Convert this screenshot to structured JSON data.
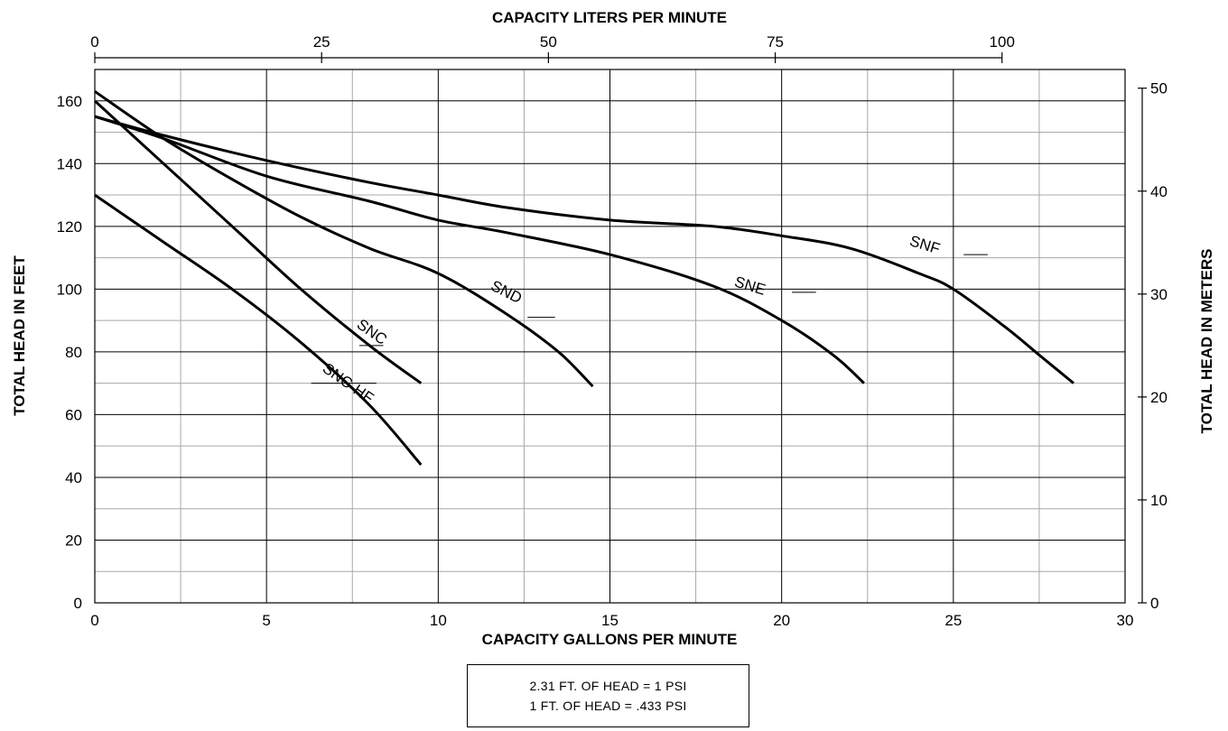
{
  "chart_data": {
    "type": "line",
    "title": "",
    "top_axis": {
      "label": "CAPACITY LITERS PER MINUTE",
      "ticks": [
        0,
        25,
        50,
        75,
        100
      ],
      "tick_labels": [
        "0",
        "25",
        "50",
        "75",
        "100"
      ]
    },
    "xlabel": "CAPACITY GALLONS PER MINUTE",
    "xlim": [
      0,
      30
    ],
    "xticks": [
      0,
      5,
      10,
      15,
      20,
      25,
      30
    ],
    "xtick_labels": [
      "0",
      "5",
      "10",
      "15",
      "20",
      "25",
      "30"
    ],
    "ylabel": "TOTAL HEAD IN FEET",
    "ylim": [
      0,
      170
    ],
    "yticks": [
      0,
      20,
      40,
      60,
      80,
      100,
      120,
      140,
      160
    ],
    "ytick_labels": [
      "0",
      "20",
      "40",
      "60",
      "80",
      "100",
      "120",
      "140",
      "160"
    ],
    "right_axis": {
      "label": "TOTAL HEAD IN METERS",
      "ticks": [
        0,
        10,
        20,
        30,
        40,
        50
      ],
      "tick_labels": [
        "0",
        "10",
        "20",
        "30",
        "40",
        "50"
      ]
    },
    "grid": true,
    "series": [
      {
        "name": "SNC-HF",
        "x": [
          0,
          2,
          4,
          6,
          8,
          9.5
        ],
        "y": [
          130,
          115,
          100,
          83,
          63,
          44
        ]
      },
      {
        "name": "SNC",
        "x": [
          0,
          2,
          4,
          6,
          8,
          9.5
        ],
        "y": [
          160,
          140,
          120,
          100,
          82,
          70
        ]
      },
      {
        "name": "SND",
        "x": [
          0,
          2,
          4,
          6,
          8,
          10,
          12,
          13.5,
          14.5
        ],
        "y": [
          163,
          148,
          135,
          123,
          113,
          105,
          92,
          80,
          69
        ]
      },
      {
        "name": "SNE",
        "x": [
          0,
          2,
          5,
          8,
          10,
          12,
          15,
          18,
          20,
          21.5,
          22.4
        ],
        "y": [
          155,
          148,
          136,
          128,
          122,
          118,
          111,
          101,
          90,
          79,
          70
        ]
      },
      {
        "name": "SNF",
        "x": [
          0,
          2,
          5,
          8,
          10,
          12,
          15,
          18,
          20,
          22,
          24,
          25,
          26.5,
          27.5,
          28.5
        ],
        "y": [
          155,
          149,
          141,
          134,
          130,
          126,
          122,
          120,
          117,
          113,
          105,
          100,
          88,
          79,
          70
        ]
      }
    ]
  },
  "note": {
    "line1": "2.31 FT. OF HEAD = 1 PSI",
    "line2": "1 FT. OF HEAD = .433 PSI"
  }
}
